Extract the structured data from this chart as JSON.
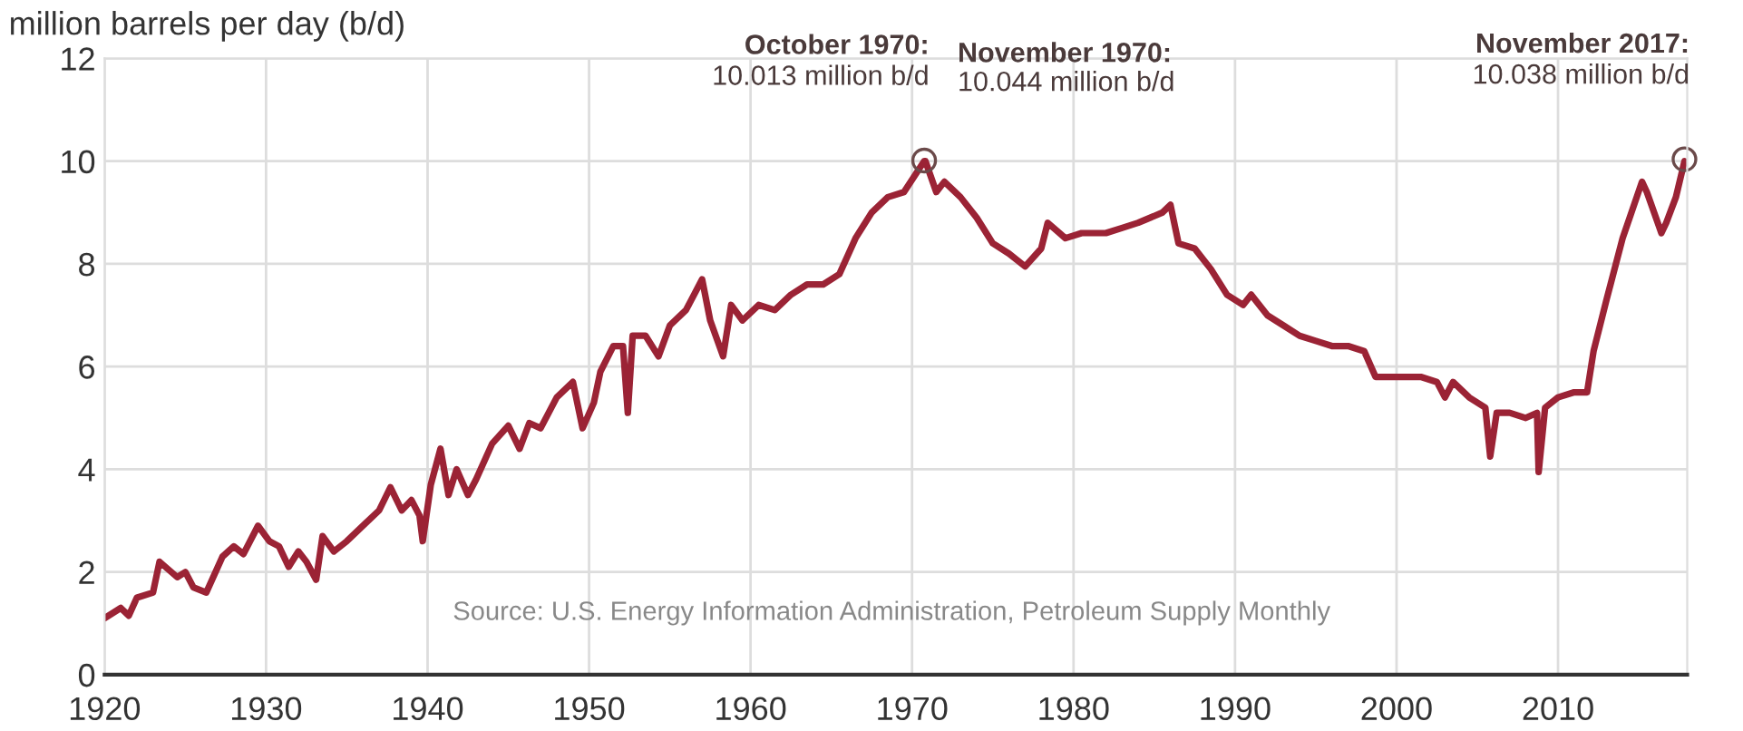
{
  "chart_data": {
    "type": "line",
    "ylabel": "million barrels per day (b/d)",
    "x": [
      1920,
      1921,
      1921.5,
      1922,
      1923,
      1923.4,
      1924.5,
      1925,
      1925.5,
      1926.3,
      1927.3,
      1928,
      1928.6,
      1929.5,
      1930.2,
      1930.8,
      1931.4,
      1932,
      1932.5,
      1933.1,
      1933.5,
      1934.2,
      1935,
      1936,
      1937,
      1937.7,
      1938.4,
      1939,
      1939.5,
      1939.7,
      1940.2,
      1940.8,
      1941.3,
      1941.8,
      1942.5,
      1943,
      1944,
      1945,
      1945.7,
      1946.3,
      1947,
      1948,
      1949,
      1949.6,
      1950.3,
      1950.7,
      1951.5,
      1952.1,
      1952.4,
      1952.7,
      1953.5,
      1954.3,
      1955,
      1956,
      1957,
      1957.5,
      1958.3,
      1958.8,
      1959.5,
      1960.5,
      1961.5,
      1962.5,
      1963.5,
      1964.5,
      1965.5,
      1966.5,
      1967.5,
      1968.5,
      1969.5,
      1970.75,
      1970.83,
      1971.5,
      1972,
      1973,
      1974,
      1975,
      1976,
      1977,
      1978,
      1978.4,
      1979.5,
      1980.5,
      1982,
      1983,
      1984,
      1985.5,
      1986,
      1986.5,
      1987.5,
      1988.5,
      1989.5,
      1990.5,
      1991,
      1992,
      1993,
      1994,
      1995,
      1996,
      1997,
      1998,
      1998.7,
      1999.5,
      2000.5,
      2001.5,
      2002.5,
      2003,
      2003.5,
      2004.5,
      2005.5,
      2005.8,
      2006.2,
      2007,
      2008,
      2008.7,
      2008.8,
      2009.2,
      2010,
      2011,
      2011.8,
      2012.2,
      2013,
      2014,
      2015.2,
      2015.5,
      2016.4,
      2016.7,
      2017.3,
      2017.83
    ],
    "series": [
      {
        "color": "#9b2335",
        "values": [
          1.1,
          1.3,
          1.15,
          1.5,
          1.6,
          2.2,
          1.9,
          2.0,
          1.7,
          1.6,
          2.3,
          2.5,
          2.35,
          2.9,
          2.6,
          2.5,
          2.1,
          2.4,
          2.2,
          1.85,
          2.7,
          2.4,
          2.6,
          2.9,
          3.2,
          3.65,
          3.2,
          3.4,
          3.1,
          2.6,
          3.7,
          4.4,
          3.5,
          4.0,
          3.5,
          3.8,
          4.5,
          4.85,
          4.4,
          4.9,
          4.8,
          5.4,
          5.7,
          4.8,
          5.3,
          5.9,
          6.4,
          6.4,
          5.1,
          6.6,
          6.6,
          6.2,
          6.8,
          7.1,
          7.7,
          6.9,
          6.2,
          7.2,
          6.9,
          7.2,
          7.1,
          7.4,
          7.6,
          7.6,
          7.8,
          8.5,
          9.0,
          9.3,
          9.4,
          10.0,
          10.0,
          9.4,
          9.6,
          9.3,
          8.9,
          8.4,
          8.2,
          7.95,
          8.3,
          8.8,
          8.5,
          8.6,
          8.6,
          8.7,
          8.8,
          9.0,
          9.15,
          8.4,
          8.3,
          7.9,
          7.4,
          7.2,
          7.4,
          7.0,
          6.8,
          6.6,
          6.5,
          6.4,
          6.4,
          6.3,
          5.8,
          5.8,
          5.8,
          5.8,
          5.7,
          5.4,
          5.7,
          5.4,
          5.2,
          4.25,
          5.1,
          5.1,
          5.0,
          5.1,
          3.95,
          5.2,
          5.4,
          5.5,
          5.5,
          6.3,
          7.3,
          8.5,
          9.6,
          9.4,
          8.6,
          8.8,
          9.3,
          10.0
        ]
      }
    ],
    "xlim": [
      1920,
      2018
    ],
    "xticks": [
      1920,
      1930,
      1940,
      1950,
      1960,
      1970,
      1980,
      1990,
      2000,
      2010
    ],
    "ylim": [
      0,
      12
    ],
    "yticks": [
      0,
      2,
      4,
      6,
      8,
      10,
      12
    ],
    "grid": true,
    "line_style": "solid",
    "marker": "none",
    "annotations": [
      {
        "text": "October 1970:\n10.013 million b/d",
        "x": 1970.75,
        "y": 10.013
      },
      "November 1970:\n10.044 million b/d",
      {
        "text": "November 2017:\n10.038 million b/d",
        "x": 2017.83,
        "y": 10.038
      },
      "Source: U.S. Energy Information Administration, Petroleum Supply Monthly"
    ]
  }
}
